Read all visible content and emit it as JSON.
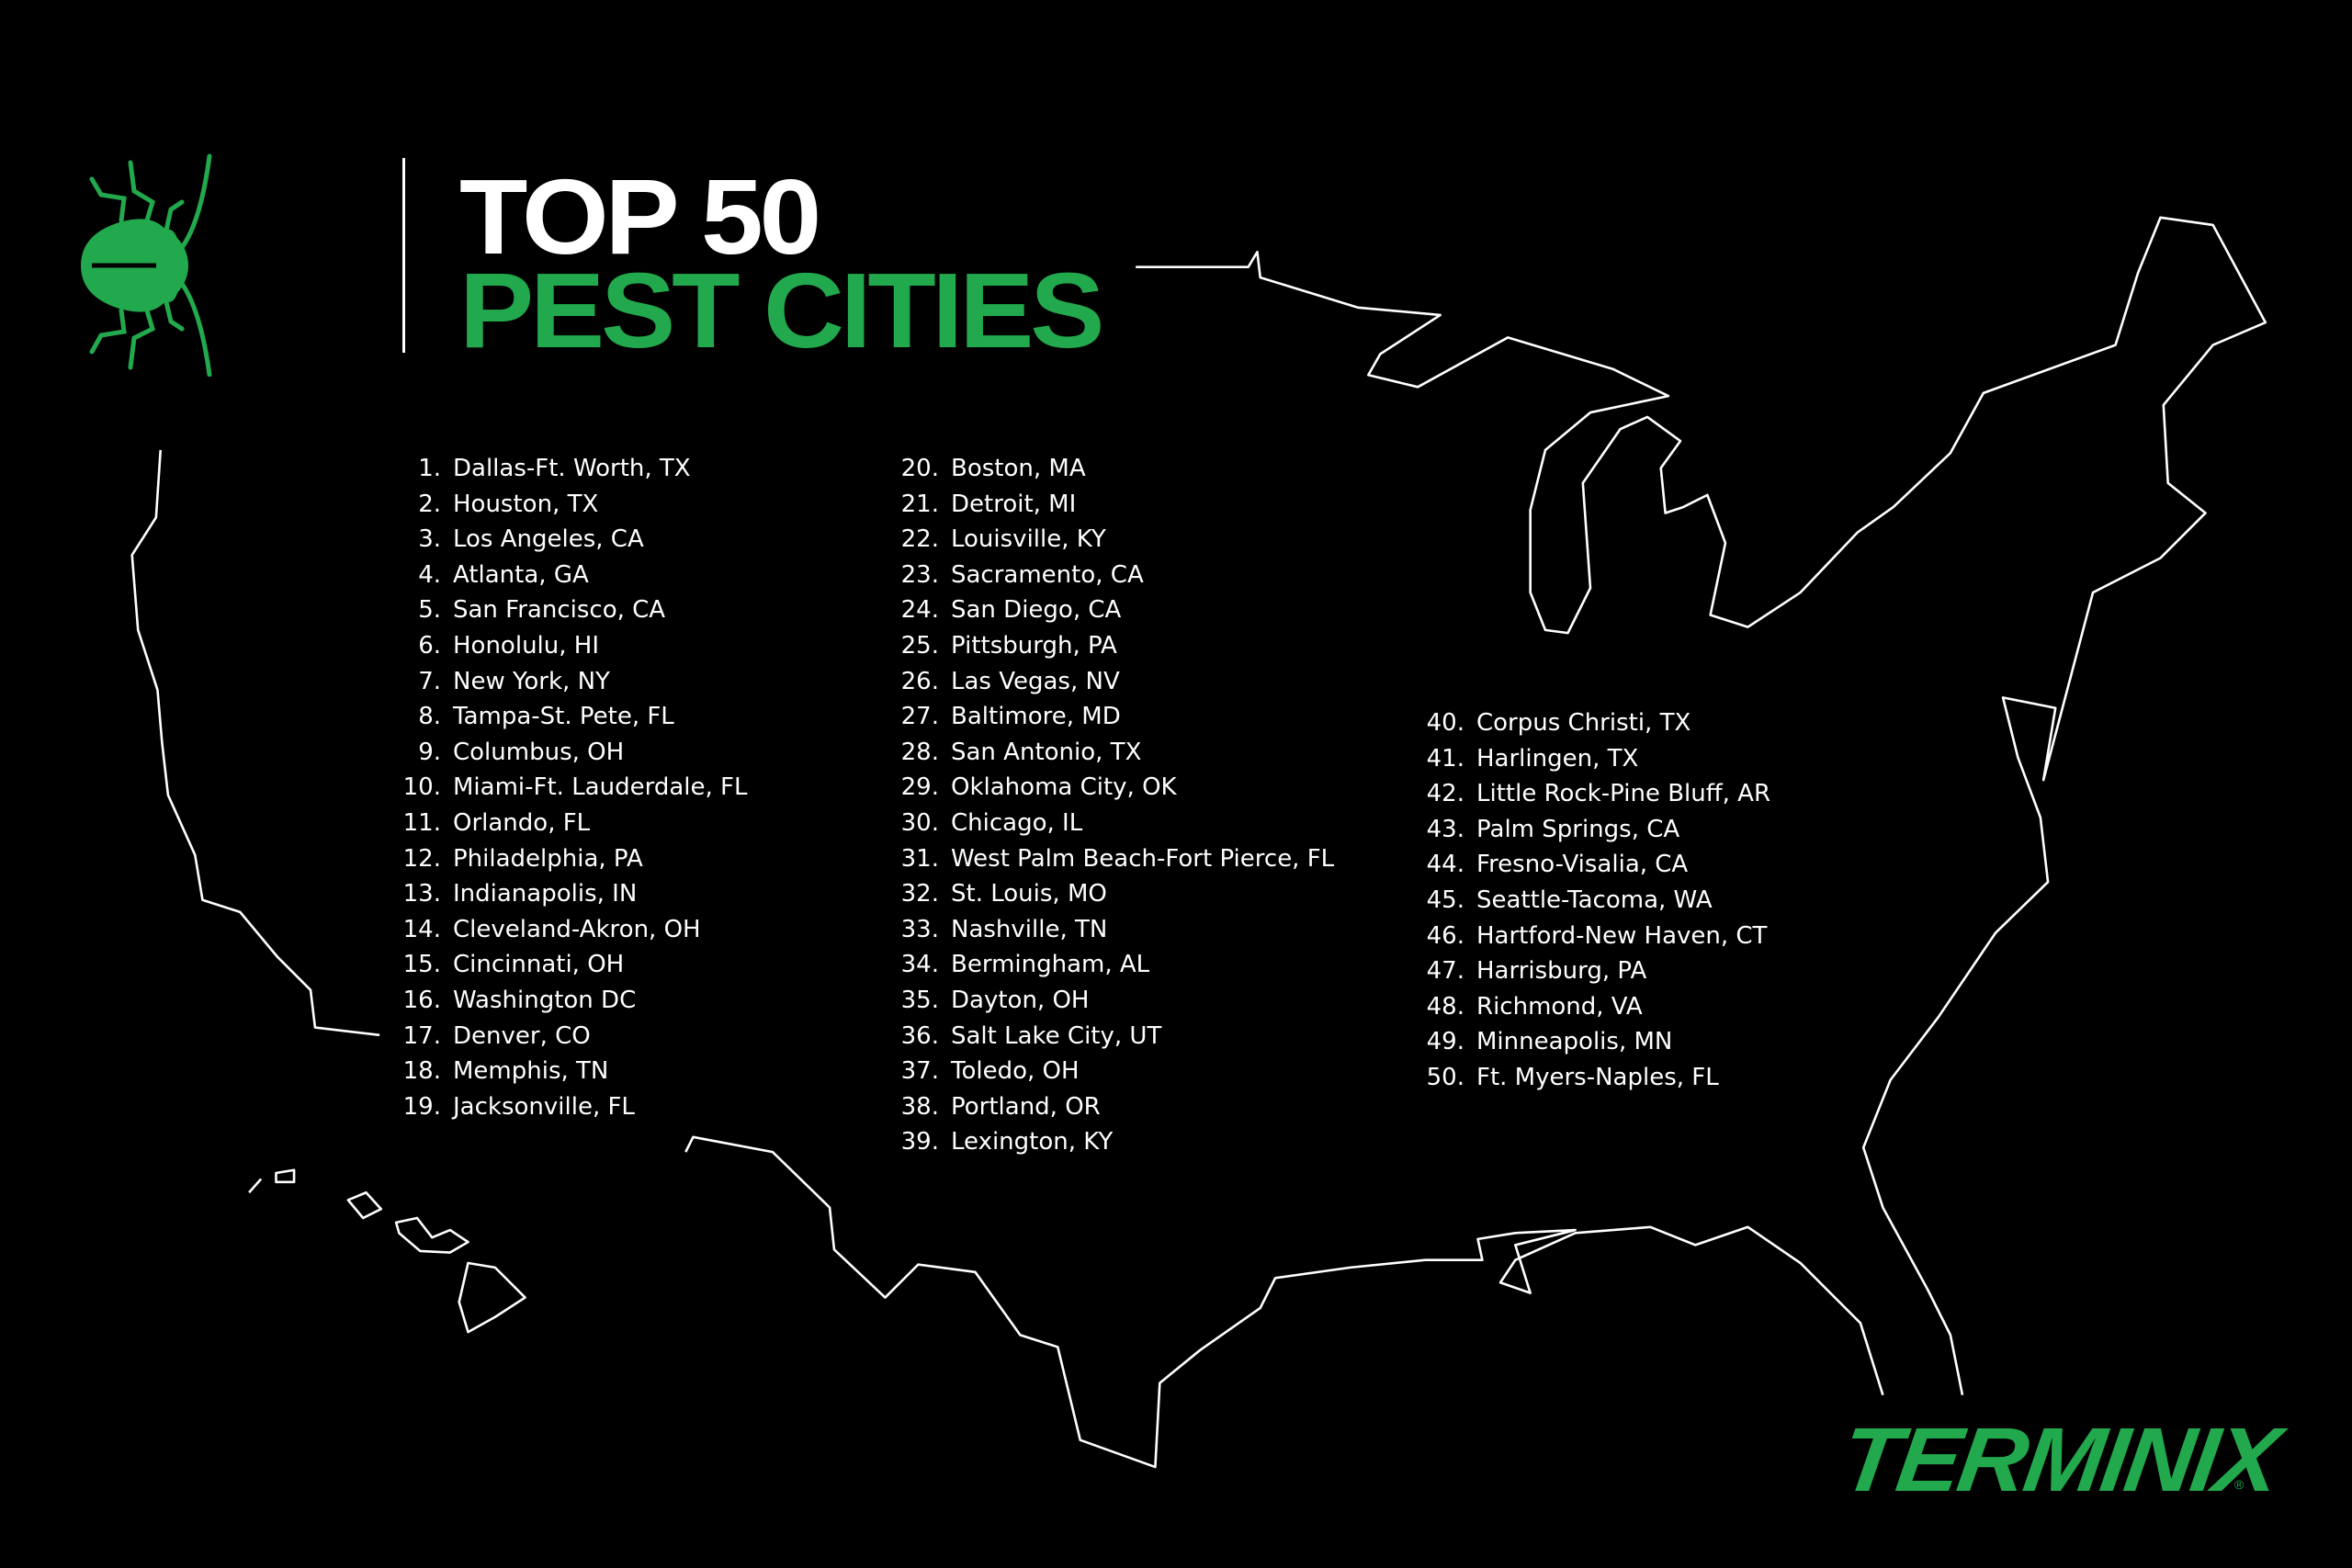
{
  "header": {
    "title_line1": "TOP 50",
    "title_line2": "PEST CITIES"
  },
  "colors": {
    "brand_green": "#22a94d",
    "background": "#000000",
    "text": "#ffffff"
  },
  "cities": [
    {
      "rank": "1.",
      "name": "Dallas-Ft. Worth, TX"
    },
    {
      "rank": "2.",
      "name": "Houston, TX"
    },
    {
      "rank": "3.",
      "name": "Los Angeles, CA"
    },
    {
      "rank": "4.",
      "name": "Atlanta, GA"
    },
    {
      "rank": "5.",
      "name": "San Francisco, CA"
    },
    {
      "rank": "6.",
      "name": "Honolulu, HI"
    },
    {
      "rank": "7.",
      "name": "New York, NY"
    },
    {
      "rank": "8.",
      "name": "Tampa-St. Pete, FL"
    },
    {
      "rank": "9.",
      "name": "Columbus, OH"
    },
    {
      "rank": "10.",
      "name": "Miami-Ft. Lauderdale, FL"
    },
    {
      "rank": "11.",
      "name": "Orlando, FL"
    },
    {
      "rank": "12.",
      "name": "Philadelphia, PA"
    },
    {
      "rank": "13.",
      "name": "Indianapolis, IN"
    },
    {
      "rank": "14.",
      "name": "Cleveland-Akron, OH"
    },
    {
      "rank": "15.",
      "name": "Cincinnati, OH"
    },
    {
      "rank": "16.",
      "name": "Washington DC"
    },
    {
      "rank": "17.",
      "name": "Denver, CO"
    },
    {
      "rank": "18.",
      "name": "Memphis, TN"
    },
    {
      "rank": "19.",
      "name": "Jacksonville, FL"
    },
    {
      "rank": "20.",
      "name": "Boston, MA"
    },
    {
      "rank": "21.",
      "name": "Detroit, MI"
    },
    {
      "rank": "22.",
      "name": "Louisville, KY"
    },
    {
      "rank": "23.",
      "name": "Sacramento, CA"
    },
    {
      "rank": "24.",
      "name": "San Diego, CA"
    },
    {
      "rank": "25.",
      "name": "Pittsburgh, PA"
    },
    {
      "rank": "26.",
      "name": "Las Vegas, NV"
    },
    {
      "rank": "27.",
      "name": "Baltimore, MD"
    },
    {
      "rank": "28.",
      "name": "San Antonio, TX"
    },
    {
      "rank": "29.",
      "name": "Oklahoma City, OK"
    },
    {
      "rank": "30.",
      "name": "Chicago, IL"
    },
    {
      "rank": "31.",
      "name": "West Palm Beach-Fort Pierce, FL"
    },
    {
      "rank": "32.",
      "name": "St. Louis, MO"
    },
    {
      "rank": "33.",
      "name": "Nashville, TN"
    },
    {
      "rank": "34.",
      "name": "Bermingham, AL"
    },
    {
      "rank": "35.",
      "name": "Dayton, OH"
    },
    {
      "rank": "36.",
      "name": "Salt Lake City, UT"
    },
    {
      "rank": "37.",
      "name": "Toledo, OH"
    },
    {
      "rank": "38.",
      "name": "Portland, OR"
    },
    {
      "rank": "39.",
      "name": "Lexington, KY"
    },
    {
      "rank": "40.",
      "name": "Corpus Christi, TX"
    },
    {
      "rank": "41.",
      "name": "Harlingen, TX"
    },
    {
      "rank": "42.",
      "name": "Little Rock-Pine Bluff, AR"
    },
    {
      "rank": "43.",
      "name": "Palm Springs, CA"
    },
    {
      "rank": "44.",
      "name": "Fresno-Visalia, CA"
    },
    {
      "rank": "45.",
      "name": "Seattle-Tacoma, WA"
    },
    {
      "rank": "46.",
      "name": "Hartford-New Haven, CT"
    },
    {
      "rank": "47.",
      "name": "Harrisburg, PA"
    },
    {
      "rank": "48.",
      "name": "Richmond, VA"
    },
    {
      "rank": "49.",
      "name": "Minneapolis, MN"
    },
    {
      "rank": "50.",
      "name": "Ft. Myers-Naples, FL"
    }
  ],
  "logo": {
    "text": "TERMINIX",
    "registered": "®"
  }
}
